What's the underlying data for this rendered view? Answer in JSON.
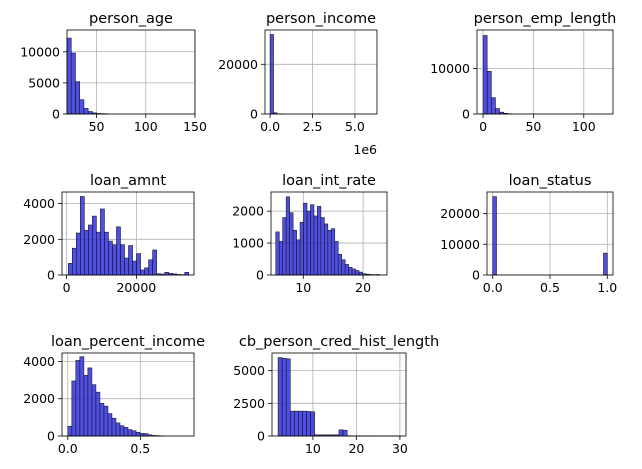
{
  "figure": {
    "bar_color": "#3030e0",
    "bar_edge": "#1a1a1a",
    "grid_color": "#b0b0b0"
  },
  "chart_data": [
    {
      "type": "bar",
      "title": "person_age",
      "x_ticks": [
        "50",
        "100",
        "150"
      ],
      "x_tick_values": [
        50,
        100,
        150
      ],
      "xlim": [
        20,
        150
      ],
      "y_ticks": [
        "0",
        "5000",
        "10000"
      ],
      "y_tick_values": [
        0,
        5000,
        10000
      ],
      "ylim": [
        0,
        13500
      ],
      "offset_label": "",
      "grid": true,
      "bins": [
        [
          20,
          24.3,
          12200
        ],
        [
          24.3,
          28.6,
          9800
        ],
        [
          28.6,
          32.9,
          5200
        ],
        [
          32.9,
          37.2,
          2300
        ],
        [
          37.2,
          41.5,
          900
        ],
        [
          41.5,
          45.8,
          400
        ],
        [
          45.8,
          50.1,
          180
        ],
        [
          50.1,
          54.4,
          90
        ],
        [
          54.4,
          58.7,
          60
        ],
        [
          58.7,
          63,
          30
        ]
      ]
    },
    {
      "type": "bar",
      "title": "person_income",
      "x_ticks": [
        "0.0",
        "2.5",
        "5.0"
      ],
      "x_tick_values": [
        0,
        2.5,
        5.0
      ],
      "xlim": [
        -0.3,
        6.3
      ],
      "y_ticks": [
        "0",
        "20000"
      ],
      "y_tick_values": [
        0,
        20000
      ],
      "ylim": [
        0,
        33800
      ],
      "offset_label": "1e6",
      "grid": true,
      "bins": [
        [
          0.004,
          0.203,
          32000
        ],
        [
          0.203,
          0.402,
          500
        ],
        [
          0.402,
          0.601,
          60
        ],
        [
          0.601,
          0.8,
          20
        ]
      ]
    },
    {
      "type": "bar",
      "title": "person_emp_length",
      "x_ticks": [
        "0",
        "50",
        "100"
      ],
      "x_tick_values": [
        0,
        50,
        100
      ],
      "xlim": [
        -6,
        129
      ],
      "y_ticks": [
        "0",
        "10000"
      ],
      "y_tick_values": [
        0,
        10000
      ],
      "ylim": [
        0,
        18500
      ],
      "offset_label": "",
      "grid": true,
      "bins": [
        [
          0,
          4.1,
          17300
        ],
        [
          4.1,
          8.2,
          9400
        ],
        [
          8.2,
          12.3,
          3600
        ],
        [
          12.3,
          16.4,
          1200
        ],
        [
          16.4,
          20.5,
          400
        ],
        [
          20.5,
          24.6,
          150
        ],
        [
          24.6,
          28.7,
          60
        ]
      ]
    },
    {
      "type": "bar",
      "title": "loan_amnt",
      "x_ticks": [
        "0",
        "20000"
      ],
      "x_tick_values": [
        0,
        20000
      ],
      "xlim": [
        -1300,
        36500
      ],
      "y_ticks": [
        "0",
        "2000",
        "4000"
      ],
      "y_tick_values": [
        0,
        2000,
        4000
      ],
      "ylim": [
        0,
        4650
      ],
      "offset_label": "",
      "grid": true,
      "bins": [
        [
          500,
          1650,
          650
        ],
        [
          1650,
          2800,
          1500
        ],
        [
          2800,
          3950,
          2350
        ],
        [
          3950,
          5100,
          4400
        ],
        [
          5100,
          6250,
          2500
        ],
        [
          6250,
          7400,
          2800
        ],
        [
          7400,
          8550,
          3300
        ],
        [
          8550,
          9700,
          2400
        ],
        [
          9700,
          10850,
          3700
        ],
        [
          10850,
          12000,
          2400
        ],
        [
          12000,
          13150,
          1900
        ],
        [
          13150,
          14300,
          1700
        ],
        [
          14300,
          15450,
          2700
        ],
        [
          15450,
          16600,
          1700
        ],
        [
          16600,
          17750,
          950
        ],
        [
          17750,
          18900,
          1650
        ],
        [
          18900,
          20050,
          780
        ],
        [
          20050,
          21200,
          1200
        ],
        [
          21200,
          22350,
          280
        ],
        [
          22350,
          23500,
          400
        ],
        [
          23500,
          24650,
          850
        ],
        [
          24650,
          25800,
          1400
        ],
        [
          25800,
          26950,
          70
        ],
        [
          26950,
          28100,
          50
        ],
        [
          28100,
          29250,
          150
        ],
        [
          29250,
          30400,
          90
        ],
        [
          30400,
          31550,
          60
        ],
        [
          31550,
          32700,
          30
        ],
        [
          32700,
          33850,
          20
        ],
        [
          33850,
          35000,
          150
        ]
      ]
    },
    {
      "type": "bar",
      "title": "loan_int_rate",
      "x_ticks": [
        "10",
        "20"
      ],
      "x_tick_values": [
        10,
        20
      ],
      "xlim": [
        4.6,
        24
      ],
      "y_ticks": [
        "0",
        "1000",
        "2000"
      ],
      "y_tick_values": [
        0,
        1000,
        2000
      ],
      "ylim": [
        0,
        2600
      ],
      "offset_label": "",
      "grid": true,
      "bins": [
        [
          5.4,
          5.98,
          1350
        ],
        [
          5.98,
          6.56,
          1050
        ],
        [
          6.56,
          7.14,
          1800
        ],
        [
          7.14,
          7.72,
          2450
        ],
        [
          7.72,
          8.3,
          1950
        ],
        [
          8.3,
          8.88,
          1400
        ],
        [
          8.88,
          9.46,
          1100
        ],
        [
          9.46,
          10.04,
          1650
        ],
        [
          10.04,
          10.62,
          2250
        ],
        [
          10.62,
          11.2,
          2000
        ],
        [
          11.2,
          11.78,
          2200
        ],
        [
          11.78,
          12.36,
          1850
        ],
        [
          12.36,
          12.94,
          2150
        ],
        [
          12.94,
          13.52,
          1800
        ],
        [
          13.52,
          14.1,
          1600
        ],
        [
          14.1,
          14.68,
          1400
        ],
        [
          14.68,
          15.26,
          1450
        ],
        [
          15.26,
          15.84,
          1050
        ],
        [
          15.84,
          16.42,
          650
        ],
        [
          16.42,
          17,
          480
        ],
        [
          17,
          17.58,
          330
        ],
        [
          17.58,
          18.16,
          240
        ],
        [
          18.16,
          18.74,
          190
        ],
        [
          18.74,
          19.32,
          140
        ],
        [
          19.32,
          19.9,
          90
        ],
        [
          19.9,
          20.48,
          40
        ],
        [
          20.48,
          21.06,
          25
        ],
        [
          21.06,
          21.64,
          15
        ],
        [
          21.64,
          22.22,
          10
        ],
        [
          22.22,
          22.8,
          15
        ]
      ]
    },
    {
      "type": "bar",
      "title": "loan_status",
      "x_ticks": [
        "0.0",
        "0.5",
        "1.0"
      ],
      "x_tick_values": [
        0,
        0.5,
        1.0
      ],
      "xlim": [
        -0.05,
        1.05
      ],
      "y_ticks": [
        "0",
        "10000",
        "20000"
      ],
      "y_tick_values": [
        0,
        10000,
        20000
      ],
      "ylim": [
        0,
        27000
      ],
      "offset_label": "",
      "grid": true,
      "bins": [
        [
          0,
          0.033,
          25500
        ],
        [
          0.967,
          1.0,
          7100
        ]
      ]
    },
    {
      "type": "bar",
      "title": "loan_percent_income",
      "x_ticks": [
        "0.0",
        "0.5"
      ],
      "x_tick_values": [
        0,
        0.5
      ],
      "xlim": [
        -0.04,
        0.87
      ],
      "y_ticks": [
        "0",
        "2000",
        "4000"
      ],
      "y_tick_values": [
        0,
        2000,
        4000
      ],
      "ylim": [
        0,
        4450
      ],
      "offset_label": "",
      "grid": true,
      "bins": [
        [
          0,
          0.0277,
          520
        ],
        [
          0.0277,
          0.0553,
          2950
        ],
        [
          0.0553,
          0.083,
          4050
        ],
        [
          0.083,
          0.1107,
          4250
        ],
        [
          0.1107,
          0.1383,
          3250
        ],
        [
          0.1383,
          0.166,
          3650
        ],
        [
          0.166,
          0.1937,
          2750
        ],
        [
          0.1937,
          0.2213,
          2350
        ],
        [
          0.2213,
          0.249,
          1750
        ],
        [
          0.249,
          0.2767,
          1600
        ],
        [
          0.2767,
          0.3043,
          1200
        ],
        [
          0.3043,
          0.332,
          950
        ],
        [
          0.332,
          0.3597,
          700
        ],
        [
          0.3597,
          0.3873,
          550
        ],
        [
          0.3873,
          0.415,
          460
        ],
        [
          0.415,
          0.4427,
          340
        ],
        [
          0.4427,
          0.4703,
          280
        ],
        [
          0.4703,
          0.498,
          200
        ],
        [
          0.498,
          0.5257,
          140
        ],
        [
          0.5257,
          0.5533,
          130
        ],
        [
          0.5533,
          0.581,
          60
        ],
        [
          0.581,
          0.6087,
          30
        ],
        [
          0.6087,
          0.6363,
          20
        ],
        [
          0.6363,
          0.664,
          10
        ]
      ]
    },
    {
      "type": "bar",
      "title": "cb_person_cred_hist_length",
      "x_ticks": [
        "10",
        "20",
        "30"
      ],
      "x_tick_values": [
        10,
        20,
        30
      ],
      "xlim": [
        0.6,
        31.4
      ],
      "y_ticks": [
        "0",
        "2500",
        "5000"
      ],
      "y_tick_values": [
        0,
        2500,
        5000
      ],
      "ylim": [
        0,
        6350
      ],
      "offset_label": "",
      "grid": true,
      "bins": [
        [
          2,
          2.93,
          6000
        ],
        [
          2.93,
          3.87,
          5950
        ],
        [
          3.87,
          4.8,
          5900
        ],
        [
          4.8,
          5.73,
          1900
        ],
        [
          5.73,
          6.67,
          1900
        ],
        [
          6.67,
          7.6,
          1900
        ],
        [
          7.6,
          8.53,
          1900
        ],
        [
          8.53,
          9.47,
          1880
        ],
        [
          9.47,
          10.4,
          1850
        ],
        [
          10.4,
          11.33,
          90
        ],
        [
          11.33,
          12.27,
          90
        ],
        [
          12.27,
          13.2,
          90
        ],
        [
          13.2,
          14.13,
          90
        ],
        [
          14.13,
          15.07,
          90
        ],
        [
          15.07,
          16,
          90
        ],
        [
          16,
          16.93,
          470
        ],
        [
          16.93,
          17.87,
          440
        ],
        [
          17.87,
          18.8,
          20
        ],
        [
          18.8,
          19.73,
          15
        ],
        [
          19.73,
          20.67,
          15
        ],
        [
          20.67,
          21.6,
          10
        ],
        [
          21.6,
          22.53,
          10
        ],
        [
          22.53,
          23.47,
          10
        ],
        [
          23.47,
          24.4,
          8
        ],
        [
          24.4,
          25.33,
          8
        ],
        [
          25.33,
          26.27,
          6
        ],
        [
          26.27,
          27.2,
          5
        ],
        [
          27.2,
          28.13,
          5
        ],
        [
          28.13,
          29.07,
          4
        ],
        [
          29.07,
          30,
          4
        ]
      ]
    }
  ]
}
